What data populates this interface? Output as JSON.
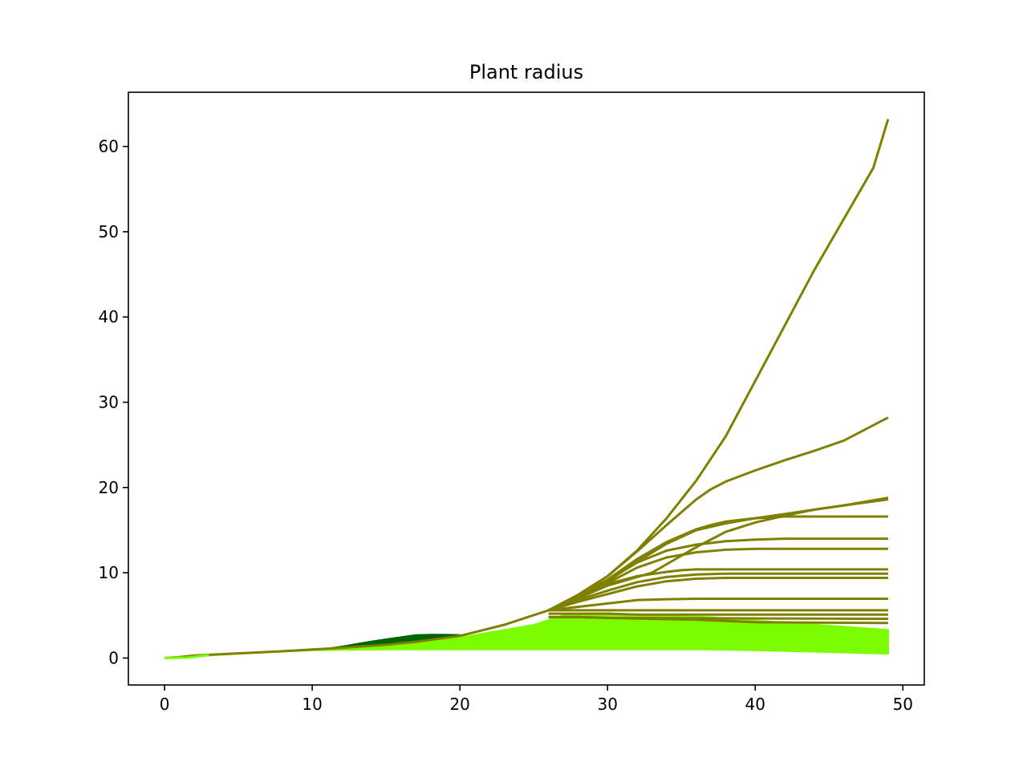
{
  "chart_data": {
    "type": "line",
    "title": "Plant radius",
    "xlabel": "",
    "ylabel": "",
    "xlim": [
      -2.45,
      51.45
    ],
    "ylim": [
      -3.16,
      66.36
    ],
    "xticks": [
      0,
      10,
      20,
      30,
      40,
      50
    ],
    "yticks": [
      0,
      10,
      20,
      30,
      40,
      50,
      60
    ],
    "grid": false,
    "legend": "none",
    "colors": {
      "olive": "#808000",
      "dark_green": "#006400",
      "lawn_green": "#7cfc00",
      "axes": "#000000",
      "background": "#ffffff"
    },
    "shared_early_curve": {
      "x": [
        0,
        1,
        2,
        5,
        8,
        10,
        12,
        15,
        17,
        20,
        23,
        26
      ],
      "y": [
        0.0,
        0.1,
        0.3,
        0.55,
        0.8,
        1.0,
        1.2,
        1.55,
        1.9,
        2.6,
        3.9,
        5.6
      ]
    },
    "dark_green_band": {
      "x": [
        10,
        11,
        12,
        13,
        14,
        15,
        16,
        17,
        18,
        19,
        20
      ],
      "upper": [
        1.0,
        1.1,
        1.35,
        1.65,
        1.95,
        2.2,
        2.45,
        2.7,
        2.75,
        2.75,
        2.7
      ],
      "lower": [
        1.0,
        1.05,
        1.15,
        1.25,
        1.35,
        1.45,
        1.6,
        1.75,
        1.95,
        2.15,
        2.5
      ]
    },
    "green_band": {
      "x": [
        0,
        5,
        10,
        15,
        20,
        25,
        27,
        30,
        35,
        37,
        40,
        45,
        49
      ],
      "upper": [
        0.0,
        0.55,
        0.95,
        1.5,
        2.4,
        3.9,
        5.0,
        5.0,
        4.9,
        4.8,
        4.4,
        3.8,
        3.3
      ],
      "lower": [
        0.0,
        0.5,
        0.9,
        1.0,
        1.0,
        1.0,
        1.0,
        1.0,
        1.0,
        1.0,
        0.9,
        0.7,
        0.5
      ]
    },
    "series": [
      {
        "x": [
          26,
          28,
          30,
          32,
          34,
          36,
          38,
          40,
          42,
          44,
          46,
          48,
          49
        ],
        "y": [
          5.6,
          7.4,
          9.6,
          12.6,
          16.4,
          20.8,
          26.0,
          32.5,
          39.0,
          45.5,
          51.5,
          57.5,
          63.2
        ]
      },
      {
        "x": [
          26,
          28,
          30,
          32,
          34,
          36,
          37,
          38,
          40,
          42,
          44,
          46,
          49
        ],
        "y": [
          5.6,
          7.4,
          9.6,
          12.5,
          15.6,
          18.6,
          19.8,
          20.7,
          22.0,
          23.2,
          24.3,
          25.5,
          28.2
        ]
      },
      {
        "x": [
          26,
          28,
          30,
          32,
          34,
          36,
          38,
          40,
          42,
          44,
          46,
          49
        ],
        "y": [
          5.6,
          7.2,
          9.0,
          11.3,
          13.4,
          15.0,
          15.8,
          16.4,
          16.9,
          17.4,
          17.9,
          18.8
        ]
      },
      {
        "x": [
          26,
          28,
          30,
          32,
          33,
          34,
          36,
          38,
          40,
          42,
          44,
          46,
          49
        ],
        "y": [
          5.6,
          7.0,
          8.5,
          9.5,
          10.0,
          11.0,
          13.0,
          14.8,
          15.9,
          16.7,
          17.4,
          17.9,
          18.6
        ]
      },
      {
        "x": [
          26,
          28,
          30,
          32,
          34,
          36,
          37,
          38,
          40,
          42,
          49
        ],
        "y": [
          5.6,
          7.2,
          9.2,
          11.6,
          13.6,
          15.1,
          15.6,
          16.0,
          16.4,
          16.6,
          16.6
        ]
      },
      {
        "x": [
          26,
          28,
          30,
          32,
          34,
          36,
          38,
          40,
          42,
          44,
          49
        ],
        "y": [
          5.6,
          7.2,
          9.1,
          11.2,
          12.6,
          13.3,
          13.7,
          13.9,
          14.0,
          14.0,
          14.0
        ]
      },
      {
        "x": [
          26,
          28,
          30,
          32,
          34,
          36,
          38,
          40,
          42,
          49
        ],
        "y": [
          5.6,
          7.1,
          8.8,
          10.6,
          11.8,
          12.4,
          12.7,
          12.8,
          12.8,
          12.8
        ]
      },
      {
        "x": [
          26,
          28,
          30,
          32,
          34,
          35,
          36,
          38,
          40,
          49
        ],
        "y": [
          5.6,
          7.1,
          8.7,
          9.6,
          10.1,
          10.3,
          10.4,
          10.4,
          10.4,
          10.4
        ]
      },
      {
        "x": [
          26,
          28,
          30,
          32,
          34,
          36,
          38,
          40,
          49
        ],
        "y": [
          5.6,
          6.8,
          7.9,
          8.9,
          9.5,
          9.8,
          9.9,
          9.9,
          9.9
        ]
      },
      {
        "x": [
          26,
          28,
          30,
          32,
          34,
          36,
          38,
          40,
          49
        ],
        "y": [
          5.6,
          6.6,
          7.5,
          8.4,
          9.0,
          9.3,
          9.4,
          9.4,
          9.4
        ]
      },
      {
        "x": [
          26,
          28,
          30,
          32,
          34,
          36,
          49
        ],
        "y": [
          5.6,
          6.0,
          6.4,
          6.8,
          6.9,
          6.95,
          6.95
        ]
      },
      {
        "x": [
          26,
          28,
          30,
          32,
          34,
          49
        ],
        "y": [
          5.6,
          5.6,
          5.6,
          5.6,
          5.6,
          5.6
        ]
      },
      {
        "x": [
          26,
          28,
          30,
          32,
          49
        ],
        "y": [
          5.2,
          5.2,
          5.2,
          5.1,
          5.1
        ]
      },
      {
        "x": [
          26,
          28,
          30,
          49
        ],
        "y": [
          4.8,
          4.8,
          4.7,
          4.6
        ]
      },
      {
        "x": [
          26,
          28,
          30,
          36,
          40,
          49
        ],
        "y": [
          4.8,
          4.8,
          4.7,
          4.5,
          4.2,
          4.1
        ]
      }
    ]
  }
}
